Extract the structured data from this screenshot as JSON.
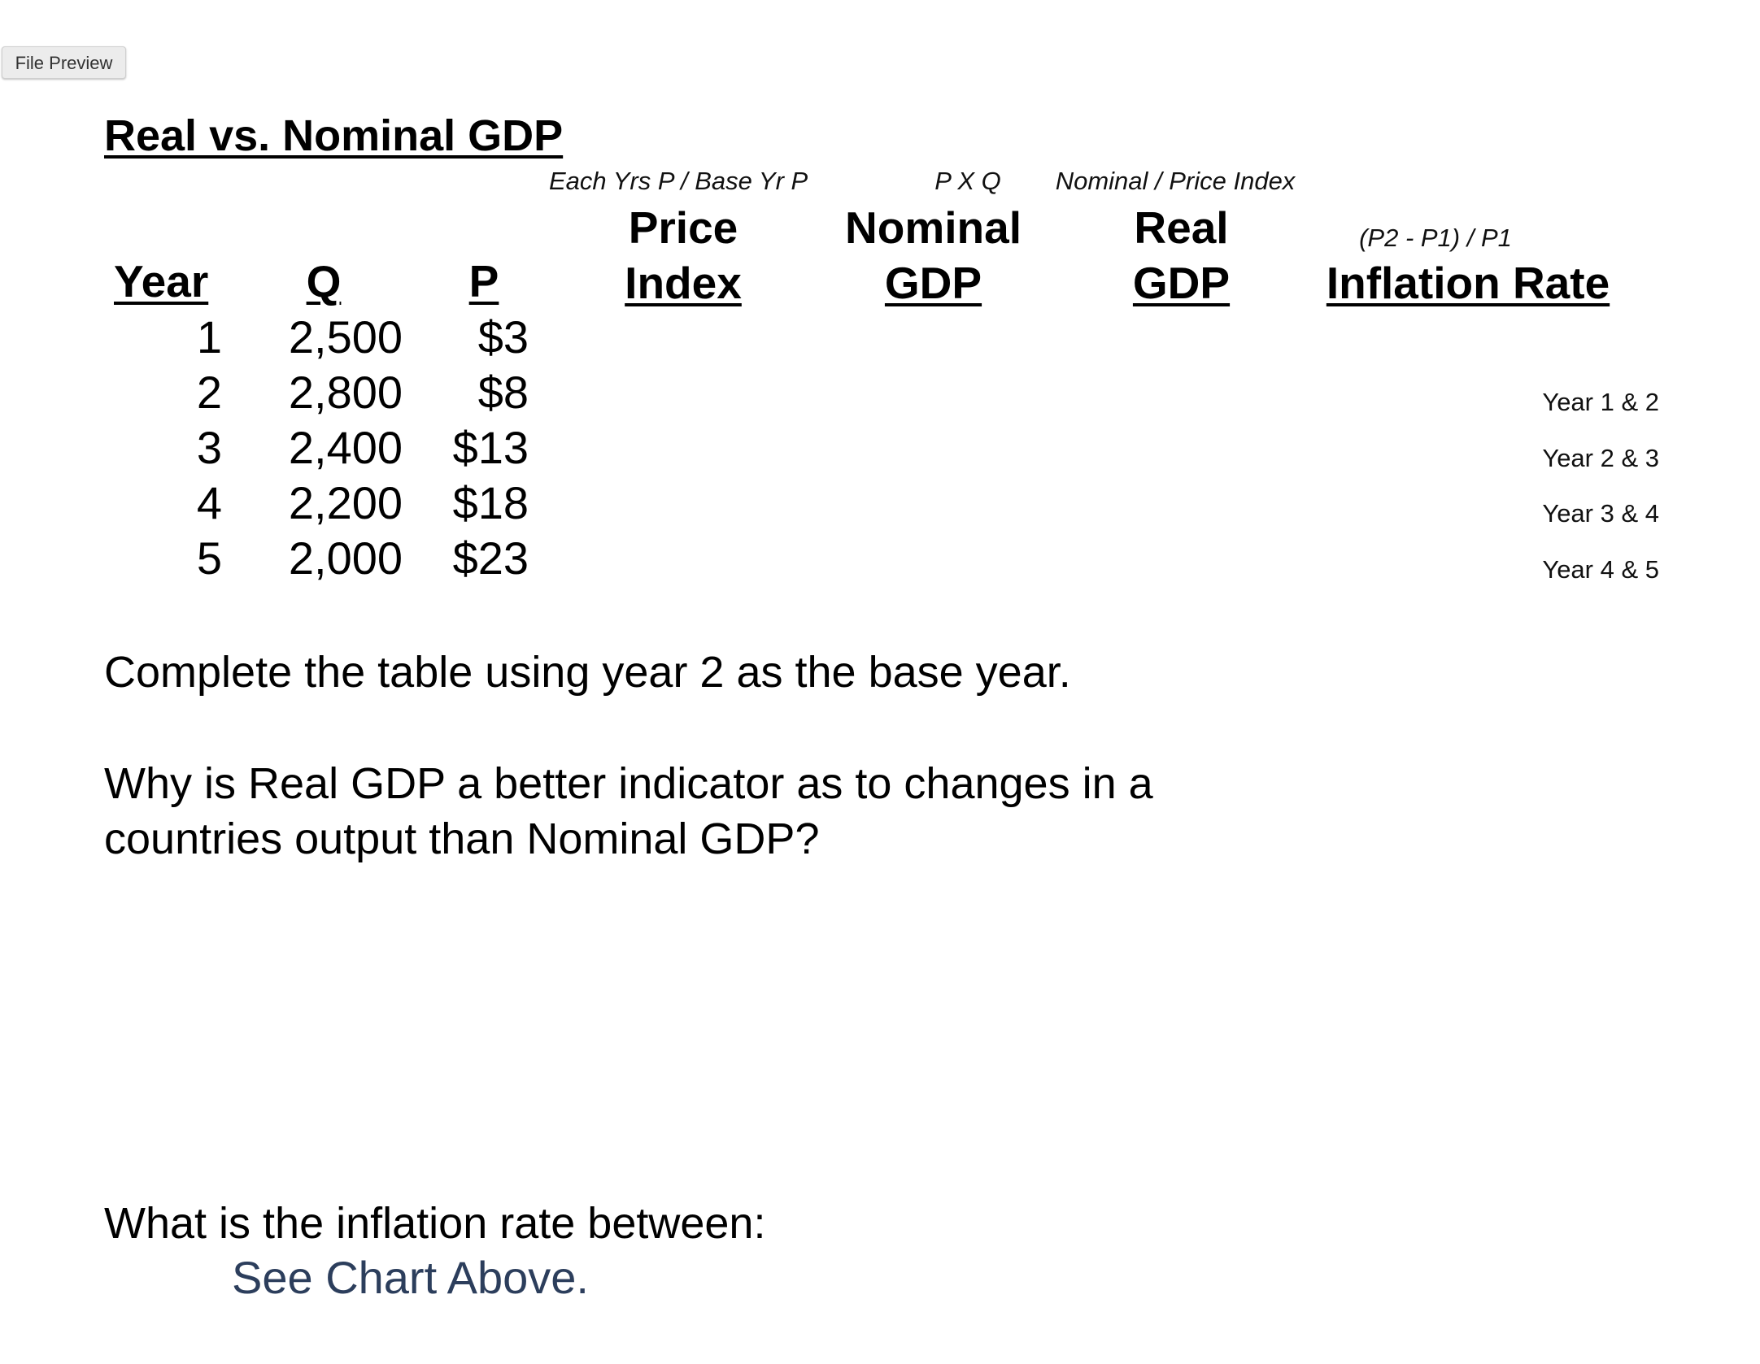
{
  "window": {
    "file_preview_label": "File Preview"
  },
  "document": {
    "title": "Real vs. Nominal GDP",
    "formulas": {
      "price_index": "Each Yrs P / Base Yr P",
      "nominal_gdp": "P X Q",
      "real_gdp": "Nominal / Price Index",
      "inflation_rate": "(P2 - P1) / P1"
    },
    "headers": {
      "year": "Year",
      "q": "Q",
      "p": "P",
      "price_index_line1": "Price",
      "price_index_line2": "Index",
      "nominal_line1": "Nominal",
      "nominal_line2": "GDP",
      "real_line1": "Real",
      "real_line2": "GDP",
      "inflation": "Inflation Rate"
    },
    "rows": [
      {
        "year": "1",
        "q": "2,500",
        "p": "$3"
      },
      {
        "year": "2",
        "q": "2,800",
        "p": "$8"
      },
      {
        "year": "3",
        "q": "2,400",
        "p": "$13"
      },
      {
        "year": "4",
        "q": "2,200",
        "p": "$18"
      },
      {
        "year": "5",
        "q": "2,000",
        "p": "$23"
      }
    ],
    "inflation_pairs": [
      "Year 1 & 2",
      "Year 2 & 3",
      "Year 3 & 4",
      "Year 4 & 5"
    ],
    "instruction": "Complete the table using year 2 as the base year.",
    "question1": "Why is Real GDP a better indicator as to changes in a countries output than Nominal GDP?",
    "question2": "What is the inflation rate between:",
    "answer_note": "See Chart Above."
  }
}
